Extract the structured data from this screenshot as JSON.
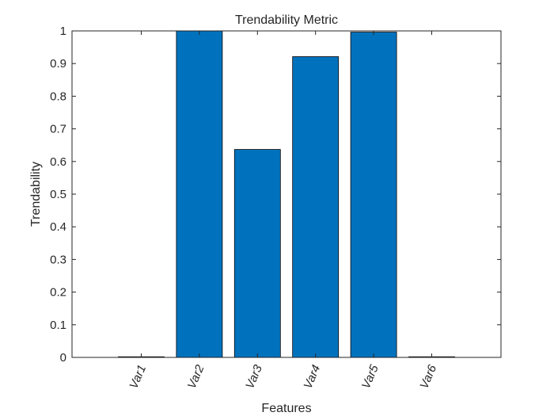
{
  "chart_data": {
    "type": "bar",
    "title": "Trendability Metric",
    "xlabel": "Features",
    "ylabel": "Trendability",
    "categories": [
      "Var1",
      "Var2",
      "Var3",
      "Var4",
      "Var5",
      "Var6"
    ],
    "values": [
      0.002,
      1.0,
      0.637,
      0.921,
      0.996,
      0.002
    ],
    "ylim": [
      0,
      1
    ],
    "yticks": [
      "0",
      "0.1",
      "0.2",
      "0.3",
      "0.4",
      "0.5",
      "0.6",
      "0.7",
      "0.8",
      "0.9",
      "1"
    ],
    "grid": false,
    "legend": "none",
    "colors": {
      "bar": "#0072BD",
      "bar_edge": "#000000",
      "axes": "#262626",
      "background": "#ffffff"
    }
  }
}
